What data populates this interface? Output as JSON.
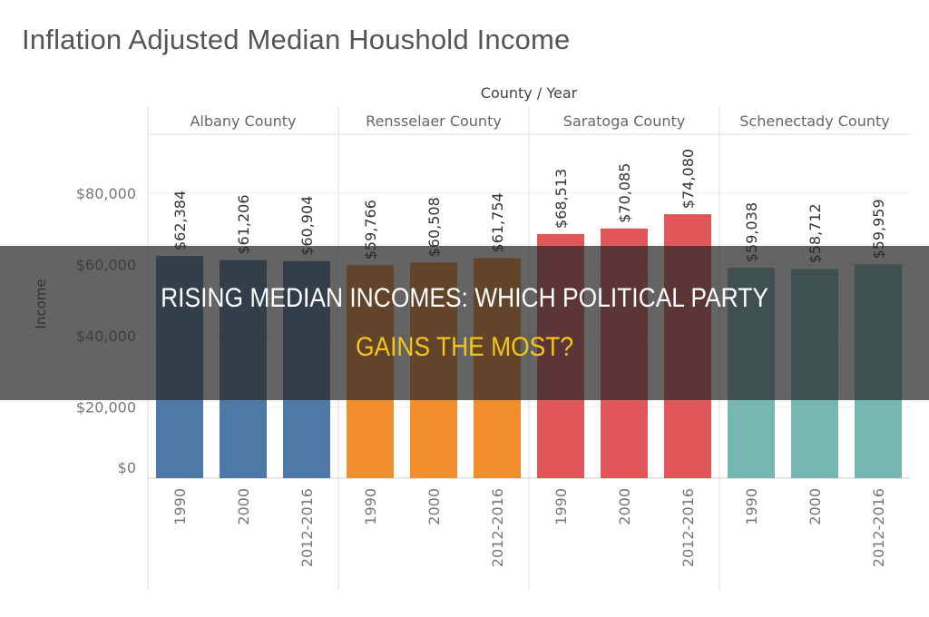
{
  "chart_data": {
    "type": "bar",
    "title": "Inflation Adjusted Median Houshold Income",
    "column_header": "County / Year",
    "ylabel": "Income",
    "ylim": [
      0,
      96000
    ],
    "yticks": [
      0,
      20000,
      40000,
      60000,
      80000
    ],
    "ytick_labels": [
      "$0",
      "$20,000",
      "$40,000",
      "$60,000",
      "$80,000"
    ],
    "grid": true,
    "panels": [
      {
        "name": "Albany County",
        "color": "#4e79a7",
        "categories": [
          "1990",
          "2000",
          "2012-2016"
        ],
        "values": [
          62384,
          61206,
          60904
        ],
        "labels": [
          "$62,384",
          "$61,206",
          "$60,904"
        ]
      },
      {
        "name": "Rensselaer County",
        "color": "#f28e2b",
        "categories": [
          "1990",
          "2000",
          "2012-2016"
        ],
        "values": [
          59766,
          60508,
          61754
        ],
        "labels": [
          "$59,766",
          "$60,508",
          "$61,754"
        ]
      },
      {
        "name": "Saratoga County",
        "color": "#e15759",
        "categories": [
          "1990",
          "2000",
          "2012-2016"
        ],
        "values": [
          68513,
          70085,
          74080
        ],
        "labels": [
          "$68,513",
          "$70,085",
          "$74,080"
        ]
      },
      {
        "name": "Schenectady County",
        "color": "#76b7b2",
        "categories": [
          "1990",
          "2000",
          "2012-2016"
        ],
        "values": [
          59038,
          58712,
          59959
        ],
        "labels": [
          "$59,038",
          "$58,712",
          "$59,959"
        ]
      }
    ]
  },
  "overlay": {
    "line1": "RISING MEDIAN INCOMES: WHICH POLITICAL PARTY",
    "line2": "GAINS THE MOST?"
  }
}
